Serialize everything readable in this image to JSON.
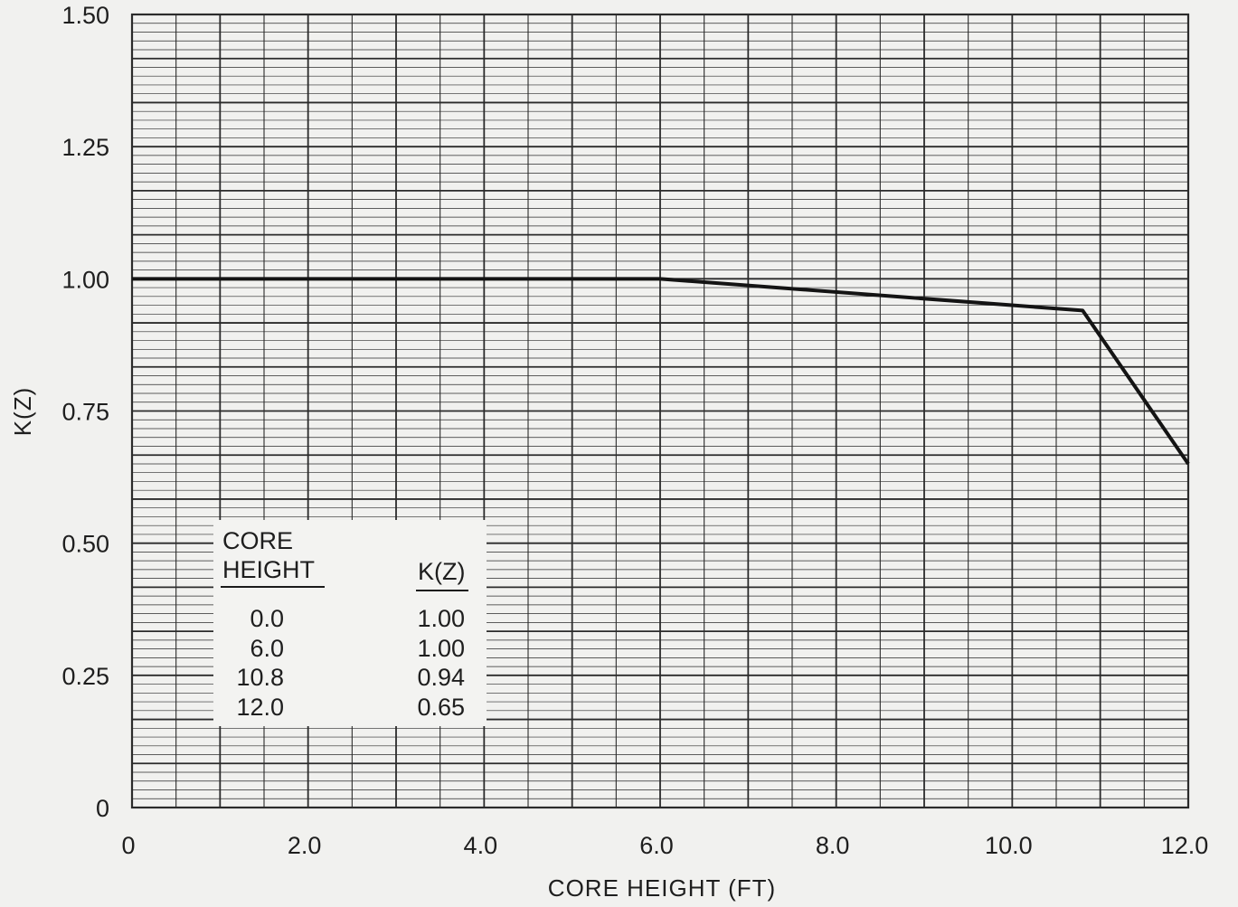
{
  "chart_data": {
    "type": "line",
    "title": "",
    "xlabel": "CORE HEIGHT (FT)",
    "ylabel": "K(Z)",
    "xlim": [
      0,
      12.0
    ],
    "ylim": [
      0,
      1.5
    ],
    "x_ticks": [
      "0",
      "2.0",
      "4.0",
      "6.0",
      "8.0",
      "10.0",
      "12.0"
    ],
    "y_ticks": [
      "0",
      "0.25",
      "0.50",
      "0.75",
      "1.00",
      "1.25",
      "1.50"
    ],
    "grid": true,
    "series": [
      {
        "x": [
          0.0,
          6.0,
          10.8,
          12.0
        ],
        "y": [
          1.0,
          1.0,
          0.94,
          0.65
        ]
      }
    ],
    "table": {
      "header_col1_line1": "CORE",
      "header_col1_line2": "HEIGHT",
      "header_col2": "K(Z)",
      "rows": [
        [
          "0.0",
          "1.00"
        ],
        [
          "6.0",
          "1.00"
        ],
        [
          "10.8",
          "0.94"
        ],
        [
          "12.0",
          "0.65"
        ]
      ]
    },
    "colors": {
      "line": "#141414",
      "grid": "#2b2b2b",
      "background": "#f1f1ef"
    }
  }
}
